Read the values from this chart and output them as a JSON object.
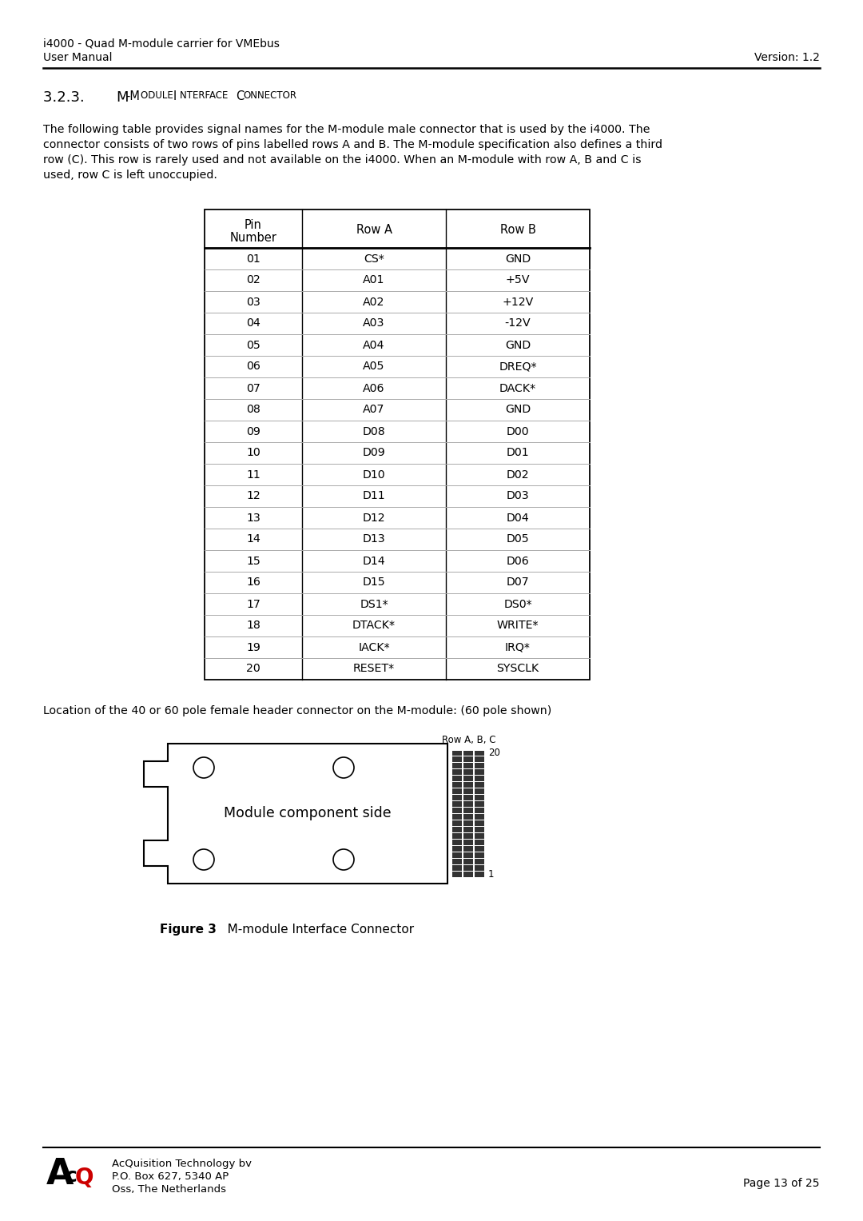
{
  "header_line1": "i4000 - Quad M-module carrier for VMEbus",
  "header_line2": "User Manual",
  "header_right": "Version: 1.2",
  "body_text": "The following table provides signal names for the M-module male connector that is used by the i4000. The\nconnector consists of two rows of pins labelled rows A and B. The M-module specification also defines a third\nrow (C). This row is rarely used and not available on the i4000. When an M-module with row A, B and C is\nused, row C is left unoccupied.",
  "table_data": [
    [
      "01",
      "CS*",
      "GND"
    ],
    [
      "02",
      "A01",
      "+5V"
    ],
    [
      "03",
      "A02",
      "+12V"
    ],
    [
      "04",
      "A03",
      "-12V"
    ],
    [
      "05",
      "A04",
      "GND"
    ],
    [
      "06",
      "A05",
      "DREQ*"
    ],
    [
      "07",
      "A06",
      "DACK*"
    ],
    [
      "08",
      "A07",
      "GND"
    ],
    [
      "09",
      "D08",
      "D00"
    ],
    [
      "10",
      "D09",
      "D01"
    ],
    [
      "11",
      "D10",
      "D02"
    ],
    [
      "12",
      "D11",
      "D03"
    ],
    [
      "13",
      "D12",
      "D04"
    ],
    [
      "14",
      "D13",
      "D05"
    ],
    [
      "15",
      "D14",
      "D06"
    ],
    [
      "16",
      "D15",
      "D07"
    ],
    [
      "17",
      "DS1*",
      "DS0*"
    ],
    [
      "18",
      "DTACK*",
      "WRITE*"
    ],
    [
      "19",
      "IACK*",
      "IRQ*"
    ],
    [
      "20",
      "RESET*",
      "SYSCLK"
    ]
  ],
  "location_text": "Location of the 40 or 60 pole female header connector on the M-module: (60 pole shown)",
  "module_label": "Module component side",
  "connector_label": "Row A, B, C",
  "figure_caption_bold": "Figure 3",
  "figure_caption_normal": "   M-module Interface Connector",
  "footer_company": "AcQuisition Technology bv",
  "footer_address1": "P.O. Box 627, 5340 AP",
  "footer_address2": "Oss, The Netherlands",
  "footer_page": "Page 13 of 25",
  "bg_color": "#ffffff",
  "text_color": "#000000"
}
